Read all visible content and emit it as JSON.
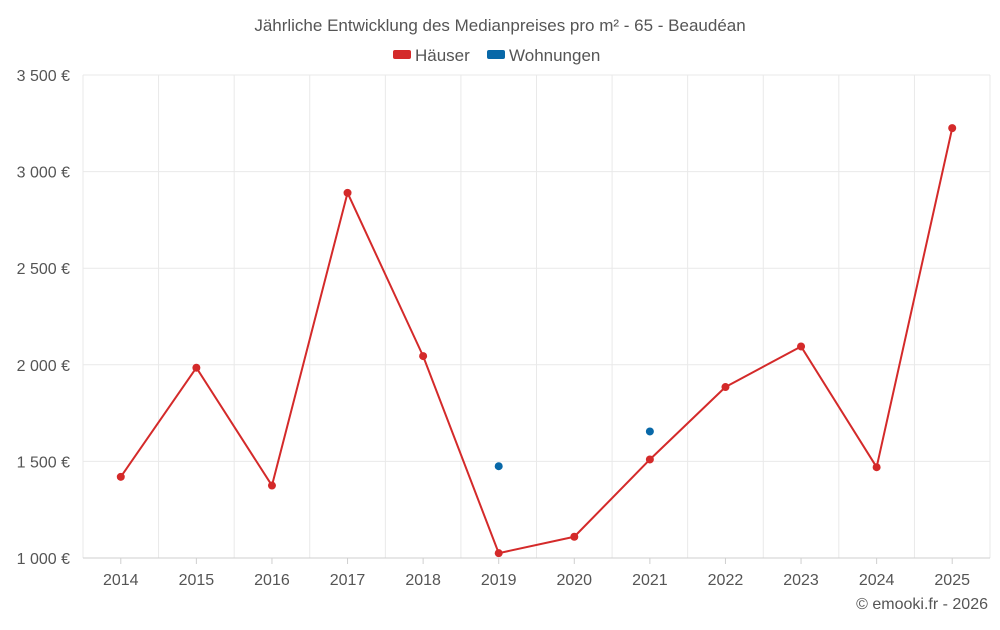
{
  "chart_data": {
    "type": "line",
    "title": "Jährliche Entwicklung des Medianpreises pro m² - 65 - Beaudéan",
    "categories": [
      "2014",
      "2015",
      "2016",
      "2017",
      "2018",
      "2019",
      "2020",
      "2021",
      "2022",
      "2023",
      "2024",
      "2025"
    ],
    "series": [
      {
        "name": "Häuser",
        "color": "#d42a2a",
        "values": [
          1420,
          1985,
          1375,
          2890,
          2045,
          1025,
          1110,
          1510,
          1885,
          2095,
          1470,
          3225
        ]
      },
      {
        "name": "Wohnungen",
        "color": "#0868a8",
        "values": [
          null,
          null,
          null,
          null,
          null,
          1475,
          null,
          1655,
          null,
          null,
          null,
          null
        ]
      }
    ],
    "ylim": [
      1000,
      3500
    ],
    "yticks": [
      1000,
      1500,
      2000,
      2500,
      3000,
      3500
    ],
    "ytick_labels": [
      "1 000 €",
      "1 500 €",
      "2 000 €",
      "2 500 €",
      "3 000 €",
      "3 500 €"
    ],
    "xlabel": "",
    "ylabel": "",
    "grid": true,
    "legend_position": "top-center"
  },
  "credit": "© emooki.fr - 2026"
}
